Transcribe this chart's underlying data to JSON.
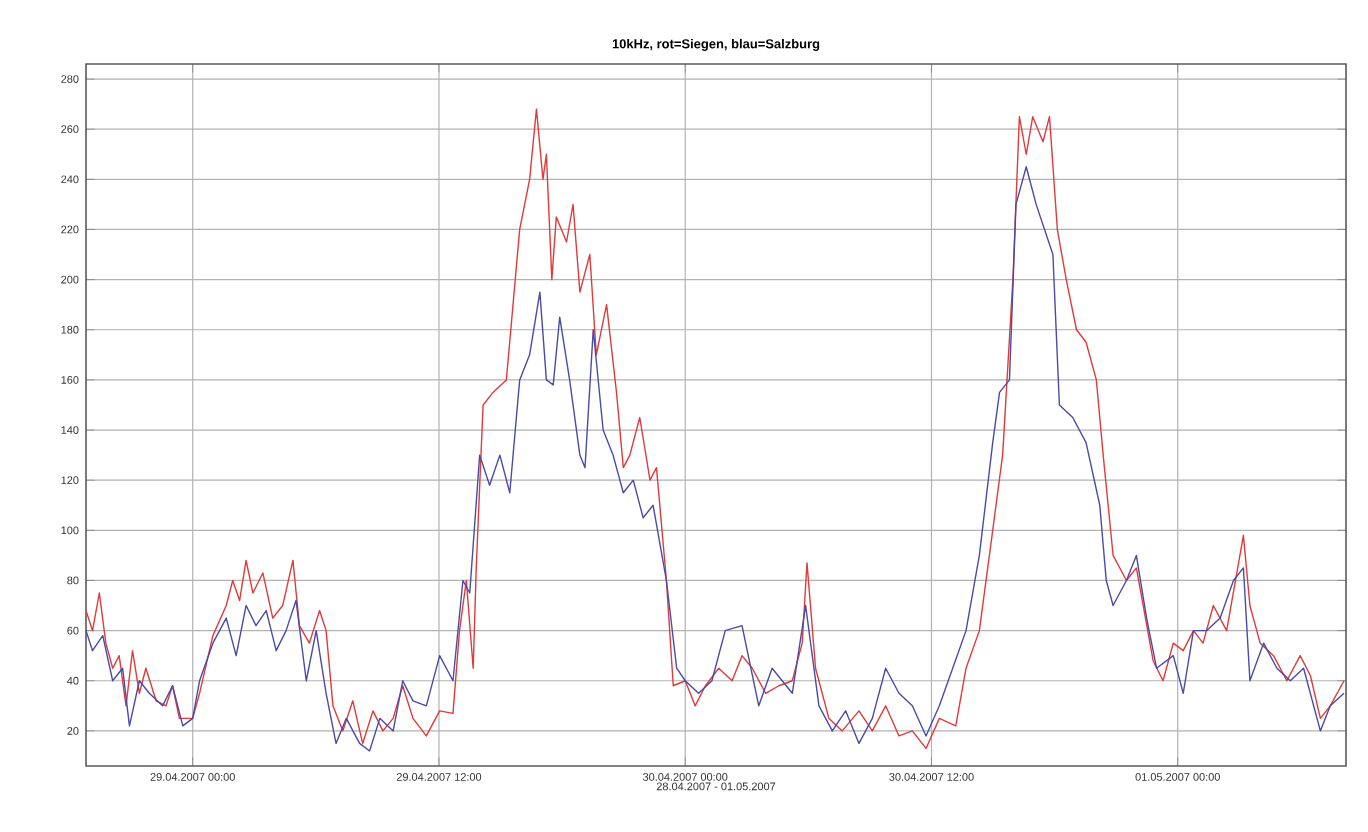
{
  "chart_data": {
    "type": "line",
    "title": "10kHz, rot=Siegen, blau=Salzburg",
    "xlabel": "28.04.2007 - 01.05.2007",
    "xlim": [
      "2007-04-28T18:48",
      "2007-05-01T08:12"
    ],
    "ylim": [
      6,
      286
    ],
    "xticks": [
      {
        "value": "2007-04-29T00:00",
        "label": "29.04.2007 00:00"
      },
      {
        "value": "2007-04-29T12:00",
        "label": "29.04.2007 12:00"
      },
      {
        "value": "2007-04-30T00:00",
        "label": "30.04.2007 00:00"
      },
      {
        "value": "2007-04-30T12:00",
        "label": "30.04.2007 12:00"
      },
      {
        "value": "2007-05-01T00:00",
        "label": "01.05.2007 00:00"
      }
    ],
    "yticks": [
      20,
      40,
      60,
      80,
      100,
      120,
      140,
      160,
      180,
      200,
      220,
      240,
      260,
      280
    ],
    "grid": true,
    "marker": "none",
    "line_style": "solid",
    "series": [
      {
        "color": "#e03a3a",
        "x": [
          "2007-04-28T18:48",
          "2007-04-28T19:07",
          "2007-04-28T19:27",
          "2007-04-28T19:46",
          "2007-04-28T20:06",
          "2007-04-28T20:25",
          "2007-04-28T20:45",
          "2007-04-28T21:04",
          "2007-04-28T21:24",
          "2007-04-28T21:43",
          "2007-04-28T22:13",
          "2007-04-28T22:42",
          "2007-04-28T23:01",
          "2007-04-28T23:21",
          "2007-04-29T00:00",
          "2007-04-29T00:20",
          "2007-04-29T00:59",
          "2007-04-29T01:38",
          "2007-04-29T01:57",
          "2007-04-29T02:17",
          "2007-04-29T02:36",
          "2007-04-29T02:56",
          "2007-04-29T03:25",
          "2007-04-29T03:54",
          "2007-04-29T04:23",
          "2007-04-29T04:53",
          "2007-04-29T05:12",
          "2007-04-29T05:41",
          "2007-04-29T06:11",
          "2007-04-29T06:30",
          "2007-04-29T06:50",
          "2007-04-29T07:19",
          "2007-04-29T07:48",
          "2007-04-29T08:17",
          "2007-04-29T08:47",
          "2007-04-29T09:16",
          "2007-04-29T09:46",
          "2007-04-29T10:14",
          "2007-04-29T10:44",
          "2007-04-29T11:23",
          "2007-04-29T12:02",
          "2007-04-29T12:41",
          "2007-04-29T13:00",
          "2007-04-29T13:20",
          "2007-04-29T13:40",
          "2007-04-29T13:49",
          "2007-04-29T14:09",
          "2007-04-29T14:38",
          "2007-04-29T15:17",
          "2007-04-29T15:56",
          "2007-04-29T16:25",
          "2007-04-29T16:45",
          "2007-04-29T17:04",
          "2007-04-29T17:14",
          "2007-04-29T17:30",
          "2007-04-29T17:43",
          "2007-04-29T18:13",
          "2007-04-29T18:32",
          "2007-04-29T18:52",
          "2007-04-29T19:21",
          "2007-04-29T19:40",
          "2007-04-29T20:10",
          "2007-04-29T20:39",
          "2007-04-29T20:59",
          "2007-04-29T21:18",
          "2007-04-29T21:47",
          "2007-04-29T22:17",
          "2007-04-29T22:36",
          "2007-04-29T23:05",
          "2007-04-29T23:25",
          "2007-04-30T00:00",
          "2007-04-30T00:29",
          "2007-04-30T00:59",
          "2007-04-30T01:38",
          "2007-04-30T02:17",
          "2007-04-30T02:46",
          "2007-04-30T03:16",
          "2007-04-30T03:55",
          "2007-04-30T04:34",
          "2007-04-30T05:13",
          "2007-04-30T05:42",
          "2007-04-30T05:56",
          "2007-04-30T06:21",
          "2007-04-30T07:00",
          "2007-04-30T07:39",
          "2007-04-30T08:28",
          "2007-04-30T09:07",
          "2007-04-30T09:46",
          "2007-04-30T10:25",
          "2007-04-30T11:04",
          "2007-04-30T11:44",
          "2007-04-30T12:23",
          "2007-04-30T13:11",
          "2007-04-30T13:41",
          "2007-04-30T14:20",
          "2007-04-30T14:59",
          "2007-04-30T15:28",
          "2007-04-30T15:58",
          "2007-04-30T16:17",
          "2007-04-30T16:37",
          "2007-04-30T16:56",
          "2007-04-30T17:26",
          "2007-04-30T17:45",
          "2007-04-30T18:08",
          "2007-04-30T18:34",
          "2007-04-30T19:04",
          "2007-04-30T19:32",
          "2007-04-30T20:02",
          "2007-04-30T20:22",
          "2007-04-30T20:51",
          "2007-04-30T21:30",
          "2007-04-30T21:59",
          "2007-04-30T22:19",
          "2007-04-30T22:48",
          "2007-04-30T23:17",
          "2007-04-30T23:47",
          "2007-05-01T00:16",
          "2007-05-01T00:46",
          "2007-05-01T01:14",
          "2007-05-01T01:44",
          "2007-05-01T02:23",
          "2007-05-01T03:12",
          "2007-05-01T03:31",
          "2007-05-01T04:01",
          "2007-05-01T04:40",
          "2007-05-01T05:19",
          "2007-05-01T05:58",
          "2007-05-01T06:28",
          "2007-05-01T06:57",
          "2007-05-01T07:26",
          "2007-05-01T08:06"
        ],
        "values": [
          68,
          60,
          75,
          55,
          45,
          50,
          30,
          52,
          35,
          45,
          32,
          30,
          38,
          25,
          25,
          35,
          58,
          70,
          80,
          72,
          88,
          75,
          83,
          65,
          70,
          88,
          62,
          55,
          68,
          60,
          30,
          20,
          32,
          15,
          28,
          20,
          25,
          38,
          25,
          18,
          28,
          27,
          60,
          80,
          45,
          85,
          150,
          155,
          160,
          220,
          240,
          268,
          240,
          250,
          200,
          225,
          215,
          230,
          195,
          210,
          170,
          190,
          155,
          125,
          130,
          145,
          120,
          125,
          80,
          38,
          40,
          30,
          38,
          45,
          40,
          50,
          45,
          35,
          38,
          40,
          55,
          87,
          45,
          25,
          20,
          28,
          20,
          30,
          18,
          20,
          13,
          25,
          22,
          45,
          60,
          100,
          130,
          200,
          265,
          250,
          265,
          255,
          265,
          220,
          200,
          180,
          175,
          160,
          130,
          90,
          80,
          85,
          70,
          48,
          40,
          55,
          52,
          60,
          55,
          70,
          60,
          98,
          70,
          55,
          50,
          40,
          50,
          42,
          25,
          30,
          40
        ]
      },
      {
        "color": "#4a4aa8",
        "x": [
          "2007-04-28T18:48",
          "2007-04-28T19:07",
          "2007-04-28T19:37",
          "2007-04-28T20:06",
          "2007-04-28T20:35",
          "2007-04-28T20:55",
          "2007-04-28T21:24",
          "2007-04-28T21:53",
          "2007-04-28T22:32",
          "2007-04-28T23:01",
          "2007-04-28T23:31",
          "2007-04-29T00:00",
          "2007-04-29T00:20",
          "2007-04-29T00:59",
          "2007-04-29T01:38",
          "2007-04-29T02:07",
          "2007-04-29T02:36",
          "2007-04-29T03:05",
          "2007-04-29T03:35",
          "2007-04-29T04:04",
          "2007-04-29T04:33",
          "2007-04-29T05:02",
          "2007-04-29T05:32",
          "2007-04-29T06:01",
          "2007-04-29T06:30",
          "2007-04-29T06:59",
          "2007-04-29T07:29",
          "2007-04-29T08:08",
          "2007-04-29T08:37",
          "2007-04-29T09:07",
          "2007-04-29T09:46",
          "2007-04-29T10:14",
          "2007-04-29T10:44",
          "2007-04-29T11:23",
          "2007-04-29T12:02",
          "2007-04-29T12:41",
          "2007-04-29T13:10",
          "2007-04-29T13:30",
          "2007-04-29T13:59",
          "2007-04-29T14:28",
          "2007-04-29T14:58",
          "2007-04-29T15:27",
          "2007-04-29T15:56",
          "2007-04-29T16:25",
          "2007-04-29T16:55",
          "2007-04-29T17:14",
          "2007-04-29T17:34",
          "2007-04-29T17:53",
          "2007-04-29T18:22",
          "2007-04-29T18:52",
          "2007-04-29T19:07",
          "2007-04-29T19:31",
          "2007-04-29T20:00",
          "2007-04-29T20:29",
          "2007-04-29T20:59",
          "2007-04-29T21:28",
          "2007-04-29T21:57",
          "2007-04-29T22:26",
          "2007-04-29T23:05",
          "2007-04-29T23:35",
          "2007-04-30T00:00",
          "2007-04-30T00:39",
          "2007-04-30T01:18",
          "2007-04-30T01:57",
          "2007-04-30T02:46",
          "2007-04-30T03:35",
          "2007-04-30T04:14",
          "2007-04-30T05:13",
          "2007-04-30T05:52",
          "2007-04-30T06:31",
          "2007-04-30T07:10",
          "2007-04-30T07:49",
          "2007-04-30T08:28",
          "2007-04-30T09:07",
          "2007-04-30T09:46",
          "2007-04-30T10:25",
          "2007-04-30T11:04",
          "2007-04-30T11:44",
          "2007-04-30T12:23",
          "2007-04-30T13:02",
          "2007-04-30T13:41",
          "2007-04-30T14:20",
          "2007-04-30T14:59",
          "2007-04-30T15:19",
          "2007-04-30T15:48",
          "2007-04-30T16:07",
          "2007-04-30T16:37",
          "2007-04-30T17:06",
          "2007-04-30T17:55",
          "2007-04-30T18:14",
          "2007-04-30T18:53",
          "2007-04-30T19:32",
          "2007-04-30T20:12",
          "2007-04-30T20:31",
          "2007-04-30T20:51",
          "2007-04-30T21:30",
          "2007-04-30T21:59",
          "2007-04-30T22:29",
          "2007-04-30T22:58",
          "2007-04-30T23:47",
          "2007-05-01T00:16",
          "2007-05-01T00:46",
          "2007-05-01T01:25",
          "2007-05-01T02:04",
          "2007-05-01T02:43",
          "2007-05-01T03:12",
          "2007-05-01T03:31",
          "2007-05-01T04:11",
          "2007-05-01T04:50",
          "2007-05-01T05:29",
          "2007-05-01T06:08",
          "2007-05-01T06:57",
          "2007-05-01T07:26",
          "2007-05-01T08:06"
        ],
        "values": [
          60,
          52,
          58,
          40,
          45,
          22,
          40,
          35,
          30,
          38,
          22,
          25,
          40,
          55,
          65,
          50,
          70,
          62,
          68,
          52,
          60,
          72,
          40,
          60,
          35,
          15,
          25,
          15,
          12,
          25,
          20,
          40,
          32,
          30,
          50,
          40,
          80,
          75,
          130,
          118,
          130,
          115,
          160,
          170,
          195,
          160,
          158,
          185,
          160,
          130,
          125,
          180,
          140,
          130,
          115,
          120,
          105,
          110,
          80,
          45,
          40,
          35,
          40,
          60,
          62,
          30,
          45,
          35,
          70,
          30,
          20,
          28,
          15,
          25,
          45,
          35,
          30,
          18,
          30,
          45,
          60,
          90,
          135,
          155,
          160,
          230,
          245,
          230,
          210,
          150,
          145,
          135,
          110,
          80,
          70,
          80,
          90,
          65,
          45,
          50,
          35,
          60,
          60,
          65,
          80,
          85,
          40,
          55,
          45,
          40,
          45,
          20,
          30,
          35
        ]
      }
    ]
  }
}
